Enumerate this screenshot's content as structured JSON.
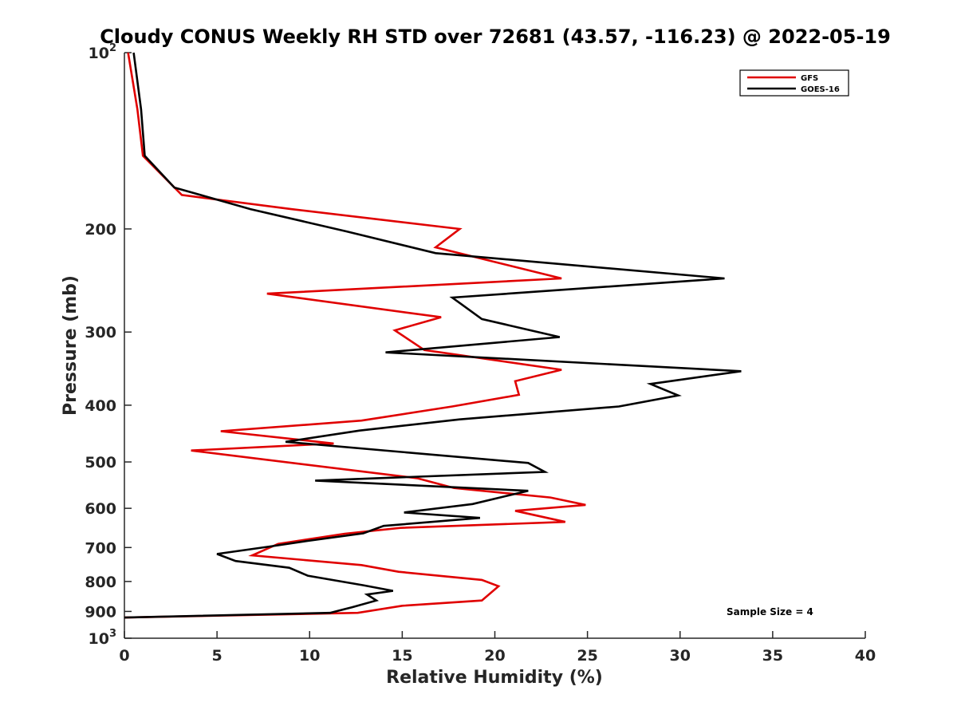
{
  "chart_data": {
    "type": "line",
    "title": "Cloudy CONUS Weekly RH STD over 72681 (43.57, -116.23) @ 2022-05-19",
    "xlabel": "Relative Humidity (%)",
    "ylabel": "Pressure (mb)",
    "xlim": [
      0,
      40
    ],
    "ylim": [
      100,
      1000
    ],
    "y_scale": "log",
    "y_reversed": true,
    "x_ticks": [
      "0",
      "5",
      "10",
      "15",
      "20",
      "25",
      "30",
      "35",
      "40"
    ],
    "x_tick_values": [
      0,
      5,
      10,
      15,
      20,
      25,
      30,
      35,
      40
    ],
    "y_ticks": [
      {
        "value": 100,
        "base": "10",
        "exp": "2"
      },
      {
        "value": 200,
        "label": "200"
      },
      {
        "value": 300,
        "label": "300"
      },
      {
        "value": 400,
        "label": "400"
      },
      {
        "value": 500,
        "label": "500"
      },
      {
        "value": 600,
        "label": "600"
      },
      {
        "value": 700,
        "label": "700"
      },
      {
        "value": 800,
        "label": "800"
      },
      {
        "value": 900,
        "label": "900"
      },
      {
        "value": 1000,
        "base": "10",
        "exp": "3"
      }
    ],
    "grid": false,
    "legend_position": "top-right",
    "annotation": "Sample Size = 4",
    "series": [
      {
        "name": "GFS",
        "color": "#e00000",
        "points": [
          [
            0.2,
            100
          ],
          [
            0.7,
            125
          ],
          [
            1.0,
            150
          ],
          [
            3.1,
            175
          ],
          [
            9.0,
            185
          ],
          [
            18.1,
            200
          ],
          [
            16.8,
            215
          ],
          [
            23.6,
            243
          ],
          [
            7.7,
            258
          ],
          [
            17.1,
            283
          ],
          [
            14.6,
            298
          ],
          [
            16.2,
            322
          ],
          [
            23.6,
            348
          ],
          [
            21.1,
            364
          ],
          [
            21.3,
            384
          ],
          [
            17.7,
            402
          ],
          [
            12.8,
            425
          ],
          [
            5.2,
            443
          ],
          [
            11.3,
            465
          ],
          [
            3.6,
            478
          ],
          [
            15.8,
            533
          ],
          [
            17.8,
            554
          ],
          [
            23.0,
            575
          ],
          [
            24.9,
            592
          ],
          [
            21.1,
            606
          ],
          [
            23.8,
            633
          ],
          [
            14.9,
            648
          ],
          [
            11.9,
            663
          ],
          [
            8.3,
            690
          ],
          [
            6.9,
            722
          ],
          [
            12.8,
            750
          ],
          [
            14.8,
            770
          ],
          [
            19.3,
            795
          ],
          [
            20.2,
            815
          ],
          [
            19.3,
            862
          ],
          [
            15.0,
            880
          ],
          [
            12.6,
            905
          ],
          [
            0.0,
            922
          ]
        ]
      },
      {
        "name": "GOES-16",
        "color": "#000000",
        "points": [
          [
            0.5,
            100
          ],
          [
            0.9,
            125
          ],
          [
            1.1,
            150
          ],
          [
            2.7,
            170
          ],
          [
            6.8,
            185
          ],
          [
            12.0,
            202
          ],
          [
            16.8,
            220
          ],
          [
            32.4,
            243
          ],
          [
            17.7,
            262
          ],
          [
            19.3,
            285
          ],
          [
            23.5,
            306
          ],
          [
            14.1,
            325
          ],
          [
            33.3,
            350
          ],
          [
            28.4,
            368
          ],
          [
            29.9,
            385
          ],
          [
            26.7,
            402
          ],
          [
            18.1,
            423
          ],
          [
            12.7,
            442
          ],
          [
            8.7,
            462
          ],
          [
            14.7,
            480
          ],
          [
            21.8,
            502
          ],
          [
            22.7,
            520
          ],
          [
            10.3,
            538
          ],
          [
            21.8,
            560
          ],
          [
            18.8,
            590
          ],
          [
            15.1,
            610
          ],
          [
            19.2,
            623
          ],
          [
            14.0,
            643
          ],
          [
            12.9,
            662
          ],
          [
            9.9,
            682
          ],
          [
            7.9,
            697
          ],
          [
            5.0,
            718
          ],
          [
            6.0,
            738
          ],
          [
            8.9,
            758
          ],
          [
            9.9,
            782
          ],
          [
            12.9,
            812
          ],
          [
            14.5,
            830
          ],
          [
            13.1,
            842
          ],
          [
            13.6,
            862
          ],
          [
            12.3,
            885
          ],
          [
            11.1,
            905
          ],
          [
            0.0,
            922
          ]
        ]
      }
    ]
  }
}
